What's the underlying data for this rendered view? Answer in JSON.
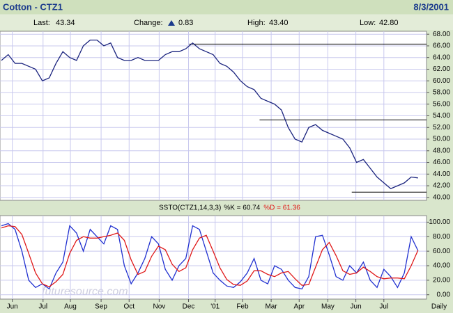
{
  "header": {
    "title": "Cotton - CTZ1",
    "date": "8/3/2001"
  },
  "quote": {
    "last_label": "Last:",
    "last": "43.34",
    "change_label": "Change:",
    "change": "0.83",
    "high_label": "High:",
    "high": "43.40",
    "low_label": "Low:",
    "low": "42.80"
  },
  "watermark": "futuresource.com",
  "chart_data": [
    {
      "type": "line",
      "color": "#1a237e",
      "values": [
        63.5,
        64.5,
        63,
        63,
        62.5,
        62,
        60,
        60.5,
        63,
        65,
        64,
        63.5,
        66,
        67,
        67,
        66,
        66.5,
        64,
        63.5,
        63.5,
        64,
        63.5,
        63.5,
        63.5,
        64.5,
        65,
        65,
        65.5,
        66.5,
        65.5,
        65,
        64.5,
        63,
        62.5,
        61.5,
        60,
        59,
        58.5,
        57,
        56.5,
        56,
        55,
        52,
        50,
        49.5,
        52,
        52.5,
        51.5,
        51,
        50.5,
        50,
        48.5,
        46,
        46.5,
        45,
        43.5,
        42.5,
        41.5,
        42,
        42.5,
        43.5,
        43.34
      ],
      "ylim": [
        39.5,
        68.5
      ],
      "yticks": [
        {
          "value": 40,
          "label": "40.00"
        },
        {
          "value": 42,
          "label": "42.00"
        },
        {
          "value": 44,
          "label": "44.00"
        },
        {
          "value": 46,
          "label": "46.00"
        },
        {
          "value": 48,
          "label": "48.00"
        },
        {
          "value": 50,
          "label": "50.00"
        },
        {
          "value": 52,
          "label": "52.00"
        },
        {
          "value": 54,
          "label": "54.00"
        },
        {
          "value": 56,
          "label": "56.00"
        },
        {
          "value": 58,
          "label": "58.00"
        },
        {
          "value": 60,
          "label": "60.00"
        },
        {
          "value": 62,
          "label": "62.00"
        },
        {
          "value": 64,
          "label": "64.00"
        },
        {
          "value": 66,
          "label": "66.00"
        },
        {
          "value": 68,
          "label": "68.00"
        }
      ],
      "hlines": [
        {
          "value": 66.3,
          "from": 27.5
        },
        {
          "value": 53.3,
          "from": 37.8
        },
        {
          "value": 40.9,
          "from": 51.3
        }
      ],
      "grid": true
    },
    {
      "type": "line",
      "title": "SSTO(CTZ1,14,3,3)",
      "series": [
        {
          "name": "%K = 60.74",
          "color": "#2030d0",
          "values": [
            95,
            98,
            90,
            60,
            20,
            10,
            15,
            8,
            30,
            45,
            95,
            85,
            60,
            90,
            80,
            70,
            95,
            90,
            40,
            15,
            30,
            50,
            80,
            70,
            35,
            20,
            40,
            50,
            95,
            90,
            60,
            30,
            20,
            12,
            10,
            18,
            30,
            50,
            20,
            15,
            40,
            35,
            20,
            10,
            8,
            25,
            80,
            82,
            55,
            25,
            20,
            40,
            30,
            45,
            20,
            10,
            35,
            25,
            10,
            30,
            80,
            60.74
          ]
        },
        {
          "name": "%D = 61.36",
          "color": "#e01818",
          "values": [
            92,
            95,
            94,
            83,
            57,
            30,
            15,
            11,
            18,
            28,
            57,
            75,
            80,
            78,
            78,
            80,
            82,
            85,
            75,
            48,
            28,
            32,
            53,
            67,
            62,
            42,
            32,
            37,
            62,
            78,
            82,
            60,
            37,
            21,
            14,
            13,
            19,
            33,
            33,
            28,
            25,
            30,
            32,
            22,
            13,
            14,
            38,
            62,
            72,
            54,
            33,
            28,
            30,
            38,
            32,
            25,
            22,
            23,
            23,
            22,
            40,
            61.36
          ]
        }
      ],
      "ylim": [
        -6,
        109
      ],
      "yticks": [
        {
          "value": 0,
          "label": "0.00"
        },
        {
          "value": 20,
          "label": "20.00"
        },
        {
          "value": 40,
          "label": "40.00"
        },
        {
          "value": 60,
          "label": "60.00"
        },
        {
          "value": 80,
          "label": "80.00"
        },
        {
          "value": 100,
          "label": "100.00"
        }
      ],
      "xticks": [
        {
          "value": 1.6,
          "label": "Jun"
        },
        {
          "value": 6.1,
          "label": "Jul"
        },
        {
          "value": 10.1,
          "label": "Aug"
        },
        {
          "value": 14.6,
          "label": "Sep"
        },
        {
          "value": 18.7,
          "label": "Oct"
        },
        {
          "value": 23.1,
          "label": "Nov"
        },
        {
          "value": 27.4,
          "label": "Dec"
        },
        {
          "value": 31.3,
          "label": "'01"
        },
        {
          "value": 35.3,
          "label": "Feb"
        },
        {
          "value": 39.5,
          "label": "Mar"
        },
        {
          "value": 43.6,
          "label": "Apr"
        },
        {
          "value": 47.8,
          "label": "May"
        },
        {
          "value": 51.9,
          "label": "Jun"
        },
        {
          "value": 56,
          "label": "Jul"
        }
      ],
      "x_note": "Daily",
      "grid": true
    }
  ]
}
